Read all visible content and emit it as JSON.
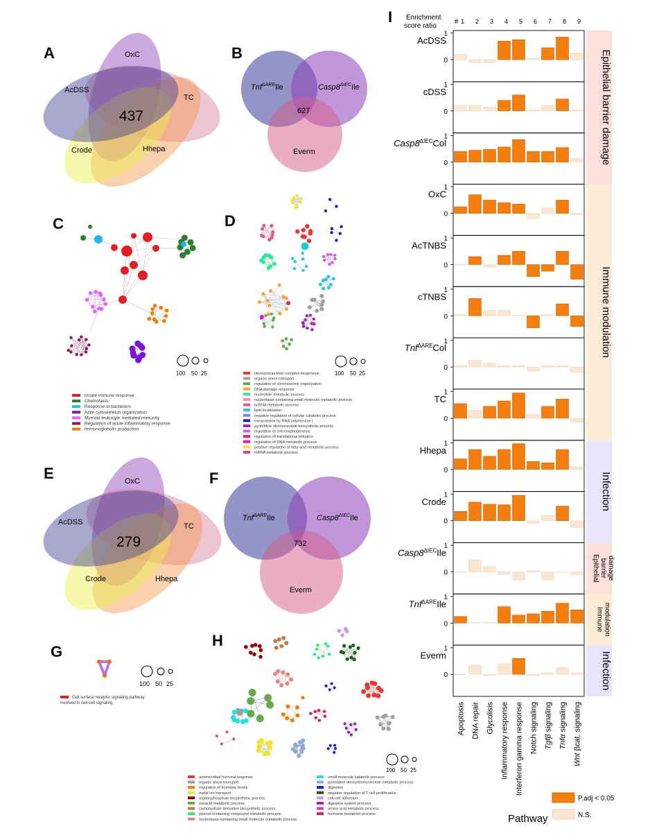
{
  "panels": {
    "A": {
      "letter": "A",
      "count": "437",
      "sets": [
        "OxC",
        "TC",
        "Hhepa",
        "Crode",
        "AcDSS"
      ]
    },
    "B": {
      "letter": "B",
      "count": "627",
      "sets": [
        {
          "base": "Tnf",
          "sup": "ΔARE",
          "suffix": "Ile"
        },
        {
          "base": "Casp8",
          "sup": "ΔIEC",
          "suffix": "Ile"
        },
        {
          "base": "Everm",
          "sup": "",
          "suffix": ""
        }
      ]
    },
    "C": {
      "letter": "C",
      "size_legend": [
        "100",
        "50",
        "25"
      ],
      "legend": [
        {
          "label": "Innate immune response",
          "color": "#d62728"
        },
        {
          "label": "Chemotaxis",
          "color": "#2e7d32"
        },
        {
          "label": "Response to bacterium",
          "color": "#29b6f6"
        },
        {
          "label": "Actin cytoskeleton organization",
          "color": "#7b1fa2"
        },
        {
          "label": "Myeloid leukocyte mediated immunity",
          "color": "#e066ff"
        },
        {
          "label": "Regulation of acute inflammatory response",
          "color": "#8b1a5a"
        },
        {
          "label": "Immunoglobulin production",
          "color": "#f57c00"
        }
      ]
    },
    "D": {
      "letter": "D",
      "size_legend": [
        "100",
        "50",
        "25"
      ],
      "legend": [
        {
          "label": "ribonucleoprotein complex biogenesis",
          "color": "#e53935"
        },
        {
          "label": "organic anion transport",
          "color": "#9e9e9e"
        },
        {
          "label": "regulation of chromosome organization",
          "color": "#6aa84f"
        },
        {
          "label": "DNA damage response",
          "color": "#f0a830"
        },
        {
          "label": "nucleotide metabolic process",
          "color": "#2ee8a0"
        },
        {
          "label": "nucleobase-containing small molecule metabolic process",
          "color": "#f48fb1"
        },
        {
          "label": "ncRNA metabolic process",
          "color": "#e05c8a"
        },
        {
          "label": "lipid localization",
          "color": "#26c6da"
        },
        {
          "label": "negative regulation of cellular catabolic process",
          "color": "#7c7cff"
        },
        {
          "label": "transcription by RNA polymerase I",
          "color": "#1a1acd"
        },
        {
          "label": "pyrimidine ribonucleotide biosynthetic process",
          "color": "#9c27b0"
        },
        {
          "label": "regulation of cell morphogenesis",
          "color": "#ce5fd8"
        },
        {
          "label": "regulation of translational initiation",
          "color": "#e91e63"
        },
        {
          "label": "regulation of DNA metabolic process",
          "color": "#ff00cc"
        },
        {
          "label": "positive regulation of fatty acid metabolic process",
          "color": "#f5e12a"
        },
        {
          "label": "mRNA metabolic process",
          "color": "#d6448a"
        }
      ]
    },
    "E": {
      "letter": "E",
      "count": "279",
      "sets": [
        "OxC",
        "TC",
        "Hhepa",
        "Crode",
        "AcDSS"
      ]
    },
    "F": {
      "letter": "F",
      "count": "732",
      "sets": [
        {
          "base": "Tnf",
          "sup": "ΔARE",
          "suffix": "Ile"
        },
        {
          "base": "Casp8",
          "sup": "ΔIEC",
          "suffix": "Ile"
        },
        {
          "base": "Everm",
          "sup": "",
          "suffix": ""
        }
      ]
    },
    "G": {
      "letter": "G",
      "size_legend": [
        "100",
        "50",
        "25"
      ],
      "legend": [
        {
          "label": "Cell surface receptor signaling pathway involved in cell-cell signaling",
          "color": "#d62728"
        }
      ]
    },
    "H": {
      "letter": "H",
      "size_legend": [
        "100",
        "50",
        "25"
      ],
      "legend_col1": [
        {
          "label": "antimicrobial humoral response",
          "color": "#e53935"
        },
        {
          "label": "organic anion transport",
          "color": "#9e9e9e"
        },
        {
          "label": "regulation of hormone levels",
          "color": "#f57c00"
        },
        {
          "label": "metal ion transport",
          "color": "#f5e12a"
        },
        {
          "label": "organophosphate biosynthetic process",
          "color": "#8b0000"
        },
        {
          "label": "oxoacid metabolic process",
          "color": "#6aa84f"
        },
        {
          "label": "carbohydrate derivative biosynthetic process",
          "color": "#c27a4a"
        },
        {
          "label": "phenol-containing compound metabolic process",
          "color": "#2ee87a"
        },
        {
          "label": "nucleobase-containing small molecule metabolic process",
          "color": "#f08080"
        }
      ],
      "legend_col2": [
        {
          "label": "small molecule catabolic process",
          "color": "#26e0e0"
        },
        {
          "label": "pyrimidine deoxyribonucleotide metabolic process",
          "color": "#8fa8d8"
        },
        {
          "label": "digestion",
          "color": "#1a1acd"
        },
        {
          "label": "negative regulation of T cell proliferation",
          "color": "#1b5e20"
        },
        {
          "label": "cell-cell adhesion",
          "color": "#c39be8"
        },
        {
          "label": "digestive system process",
          "color": "#9c27b0"
        },
        {
          "label": "amino acid metabolic process",
          "color": "#e040a0"
        },
        {
          "label": "hormone metabolic process",
          "color": "#d81b60"
        }
      ]
    }
  },
  "chart_data": {
    "type": "bar",
    "panel_letter": "I",
    "header": {
      "title_line1": "Enrichment",
      "title_line2": "score ratio",
      "hash": "#"
    },
    "columns": [
      "1",
      "2",
      "3",
      "4",
      "5",
      "6",
      "7",
      "8",
      "9"
    ],
    "categories": [
      "Apoptosis",
      "DNA repair",
      "Glycolisis",
      "Inflammatory response",
      "Interferon gamma response",
      "Notch signaling",
      "Tgfβ signaling",
      "Tnfα signaling",
      "Wnt βcat. signaling"
    ],
    "xlabel": "Pathway",
    "ylim": [
      -1,
      1
    ],
    "ytick_labels": [
      "0",
      "1"
    ],
    "legend": [
      {
        "label": "P.adj < 0.05",
        "color": "#f57f0e"
      },
      {
        "label": "N.S.",
        "color": "#fbe6cf"
      }
    ],
    "colors": {
      "sig": "#f57f0e",
      "ns": "#fbe6cf",
      "sig_edge": "#c25a00",
      "ns_edge": "#e6d2bd"
    },
    "rows": [
      {
        "label": "AcDSS",
        "values": [
          0.2,
          -0.1,
          -0.1,
          0.7,
          0.75,
          0.05,
          0.45,
          0.85,
          0.25
        ],
        "sig": [
          0,
          0,
          0,
          1,
          1,
          0,
          1,
          1,
          0
        ]
      },
      {
        "label": "cDSS",
        "values": [
          0.2,
          0.2,
          0.15,
          0.4,
          0.6,
          0.05,
          0.2,
          0.45,
          0.05
        ],
        "sig": [
          0,
          0,
          0,
          1,
          1,
          0,
          0,
          1,
          0
        ]
      },
      {
        "label": "Casp8",
        "sup": "ΔIEC",
        "suffix": "Col",
        "values": [
          0.4,
          0.45,
          0.48,
          0.57,
          0.85,
          0.4,
          0.4,
          0.55,
          0.15
        ],
        "sig": [
          1,
          1,
          1,
          1,
          1,
          1,
          1,
          1,
          0
        ]
      },
      {
        "label": "OxC",
        "values": [
          0.25,
          0.7,
          0.5,
          0.4,
          0.35,
          -0.2,
          0.2,
          0.5,
          -0.05
        ],
        "sig": [
          1,
          1,
          1,
          1,
          1,
          0,
          0,
          1,
          0
        ]
      },
      {
        "label": "AcTNBS",
        "values": [
          0.0,
          0.3,
          -0.1,
          0.35,
          0.5,
          -0.45,
          -0.25,
          0.5,
          -0.55
        ],
        "sig": [
          0,
          1,
          0,
          1,
          1,
          1,
          1,
          1,
          1
        ]
      },
      {
        "label": "cTNBS",
        "values": [
          0.05,
          0.65,
          0.2,
          0.2,
          0.02,
          -0.45,
          0.05,
          0.45,
          -0.4
        ],
        "sig": [
          0,
          1,
          0,
          0,
          0,
          1,
          0,
          1,
          1
        ]
      },
      {
        "label": "Tnf",
        "sup": "ΔARE",
        "suffix": "Col",
        "values": [
          0.05,
          0.25,
          0.15,
          0.05,
          0.05,
          -0.15,
          0.05,
          0.05,
          -0.2
        ],
        "sig": [
          0,
          0,
          0,
          0,
          0,
          0,
          0,
          0,
          0
        ]
      },
      {
        "label": "TC",
        "values": [
          0.55,
          0.3,
          0.45,
          0.65,
          0.95,
          0.15,
          0.45,
          0.72,
          -0.15
        ],
        "sig": [
          1,
          0,
          1,
          1,
          1,
          0,
          1,
          1,
          0
        ]
      },
      {
        "label": "Hhepa",
        "values": [
          0.4,
          0.75,
          0.5,
          0.75,
          0.97,
          0.3,
          0.25,
          0.75,
          0.1
        ],
        "sig": [
          1,
          1,
          1,
          1,
          1,
          1,
          1,
          1,
          0
        ]
      },
      {
        "label": "Crode",
        "values": [
          0.35,
          0.7,
          0.62,
          0.6,
          0.95,
          -0.1,
          0.2,
          0.55,
          -0.25
        ],
        "sig": [
          1,
          1,
          1,
          1,
          1,
          0,
          0,
          1,
          0
        ]
      },
      {
        "label": "Casp8",
        "sup": "ΔIEC",
        "suffix": "Ile",
        "values": [
          0.0,
          0.45,
          0.2,
          -0.1,
          -0.3,
          0.05,
          -0.3,
          0.0,
          -0.1
        ],
        "sig": [
          0,
          0,
          0,
          0,
          0,
          0,
          0,
          0,
          0
        ]
      },
      {
        "label": "Tnf",
        "sup": "ΔARE",
        "suffix": "Ile",
        "values": [
          0.25,
          0.02,
          0.02,
          0.62,
          0.3,
          0.35,
          0.45,
          0.75,
          0.5
        ],
        "sig": [
          1,
          0,
          0,
          1,
          1,
          1,
          1,
          1,
          1
        ]
      },
      {
        "label": "Everm",
        "values": [
          0.0,
          0.35,
          -0.05,
          0.4,
          0.6,
          -0.05,
          0.05,
          0.25,
          0.05
        ],
        "sig": [
          0,
          0,
          0,
          0,
          1,
          0,
          0,
          0,
          0
        ]
      }
    ],
    "groups": [
      {
        "lines": [
          "Epithelial barrier damage"
        ],
        "color": "#fde0d9"
      },
      {
        "lines": [
          "Immune modulation"
        ],
        "color": "#fcebd7"
      },
      {
        "lines": [
          "Infection"
        ],
        "color": "#e8e4fb"
      },
      {
        "lines": [
          "Epithelial",
          "barrier",
          "damage"
        ],
        "color": "#fde0d9"
      },
      {
        "lines": [
          "Immune",
          "modulation"
        ],
        "color": "#fcebd7"
      },
      {
        "lines": [
          "Infection"
        ],
        "color": "#e8e4fb"
      }
    ]
  }
}
